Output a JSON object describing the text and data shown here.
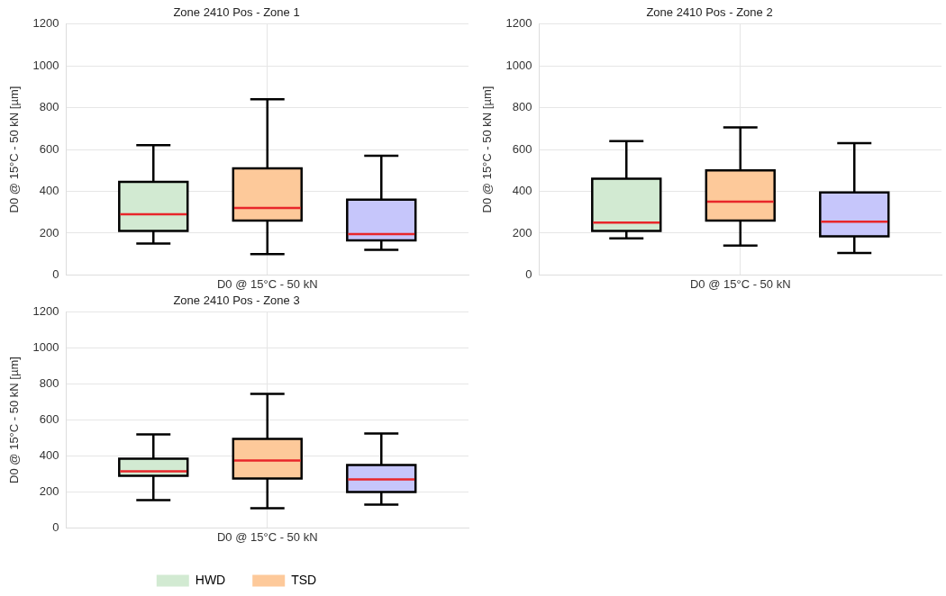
{
  "chart_data": [
    {
      "type": "box",
      "title": "Zone 2410 Pos - Zone 1",
      "ylabel": "D0 @ 15°C - 50 kN [µm]",
      "categories": [
        "D0 @ 15°C - 50 kN"
      ],
      "ylim": [
        0,
        1200
      ],
      "yticks": [
        0,
        200,
        400,
        600,
        800,
        1000,
        1200
      ],
      "grid": true,
      "series": [
        {
          "color": "#d2ead2",
          "boxes": [
            {
              "low": 150,
              "q1": 210,
              "median": 290,
              "q3": 445,
              "high": 620
            }
          ]
        },
        {
          "color": "#fdc99a",
          "boxes": [
            {
              "low": 100,
              "q1": 260,
              "median": 320,
              "q3": 510,
              "high": 840
            }
          ]
        },
        {
          "color": "#c6c6fb",
          "boxes": [
            {
              "low": 120,
              "q1": 165,
              "median": 195,
              "q3": 360,
              "high": 570
            }
          ]
        }
      ]
    },
    {
      "type": "box",
      "title": "Zone 2410 Pos - Zone 2",
      "ylabel": "D0 @ 15°C - 50 kN [µm]",
      "categories": [
        "D0 @ 15°C - 50 kN"
      ],
      "ylim": [
        0,
        1200
      ],
      "yticks": [
        0,
        200,
        400,
        600,
        800,
        1000,
        1200
      ],
      "grid": true,
      "series": [
        {
          "color": "#d2ead2",
          "boxes": [
            {
              "low": 175,
              "q1": 210,
              "median": 250,
              "q3": 460,
              "high": 640
            }
          ]
        },
        {
          "color": "#fdc99a",
          "boxes": [
            {
              "low": 140,
              "q1": 260,
              "median": 350,
              "q3": 500,
              "high": 705
            }
          ]
        },
        {
          "color": "#c6c6fb",
          "boxes": [
            {
              "low": 105,
              "q1": 185,
              "median": 255,
              "q3": 395,
              "high": 630
            }
          ]
        }
      ]
    },
    {
      "type": "box",
      "title": "Zone 2410 Pos - Zone 3",
      "ylabel": "D0 @ 15°C - 50 kN [µm]",
      "categories": [
        "D0 @ 15°C - 50 kN"
      ],
      "ylim": [
        0,
        1200
      ],
      "yticks": [
        0,
        200,
        400,
        600,
        800,
        1000,
        1200
      ],
      "grid": true,
      "legend": "bottom",
      "series": [
        {
          "name": "HWD",
          "color": "#d2ead2",
          "boxes": [
            {
              "low": 155,
              "q1": 290,
              "median": 315,
              "q3": 385,
              "high": 520
            }
          ]
        },
        {
          "name": "TSD",
          "color": "#fdc99a",
          "boxes": [
            {
              "low": 110,
              "q1": 275,
              "median": 375,
              "q3": 495,
              "high": 745
            }
          ]
        },
        {
          "color": "#c6c6fb",
          "boxes": [
            {
              "low": 130,
              "q1": 200,
              "median": 270,
              "q3": 350,
              "high": 525
            }
          ]
        }
      ]
    }
  ]
}
